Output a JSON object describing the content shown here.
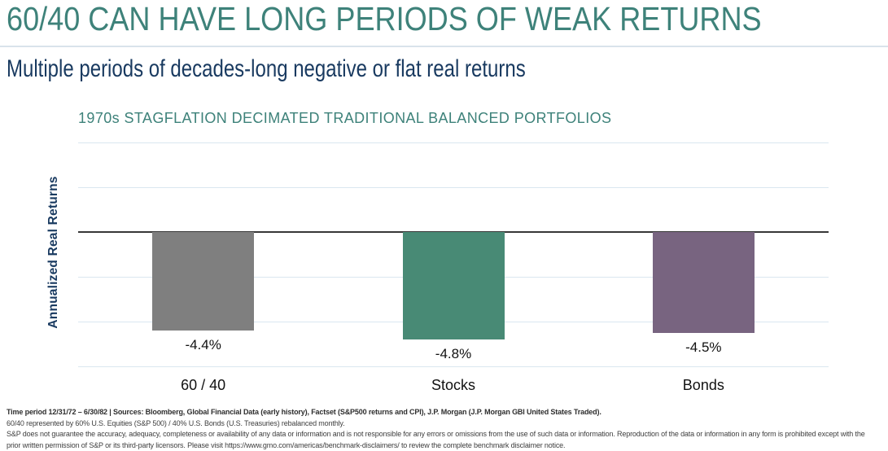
{
  "header": {
    "title": "60/40 CAN HAVE LONG PERIODS OF WEAK RETURNS",
    "subtitle": "Multiple periods of decades-long negative or flat real returns"
  },
  "chart_data": {
    "type": "bar",
    "title": "1970s STAGFLATION DECIMATED TRADITIONAL BALANCED PORTFOLIOS",
    "categories": [
      "60 / 40",
      "Stocks",
      "Bonds"
    ],
    "values": [
      -4.4,
      -4.8,
      -4.5
    ],
    "value_labels": [
      "-4.4%",
      "-4.8%",
      "-4.5%"
    ],
    "bar_colors": [
      "#7F7F7F",
      "#488A75",
      "#786480"
    ],
    "xlabel": "",
    "ylabel": "Annualized Real Returns",
    "ylim": [
      -6,
      4
    ],
    "gridline_step": 2,
    "grid": true,
    "legend": false
  },
  "footer": {
    "line1": "Time period 12/31/72 – 6/30/82 | Sources: Bloomberg, Global Financial Data (early history), Factset (S&P500 returns and CPI), J.P. Morgan (J.P. Morgan GBI United States Traded).",
    "line2": "60/40 represented by 60% U.S. Equities (S&P 500) / 40% U.S. Bonds (U.S. Treasuries) rebalanced monthly.",
    "line3": "S&P does not guarantee the accuracy, adequacy, completeness or availability of any data or information and is not responsible for any errors or omissions from the use of such data or information. Reproduction of the data or information in any form is prohibited except with the",
    "line4": "prior written permission of S&P or its third-party licensors. Please visit https://www.gmo.com/americas/benchmark-disclaimers/ to review the complete benchmark disclaimer notice."
  },
  "colors": {
    "accent_teal": "#3E827A",
    "navy": "#193A60",
    "gridline": "#DAE7F0",
    "zero_line": "#383838",
    "divider": "#D9E3EB"
  }
}
